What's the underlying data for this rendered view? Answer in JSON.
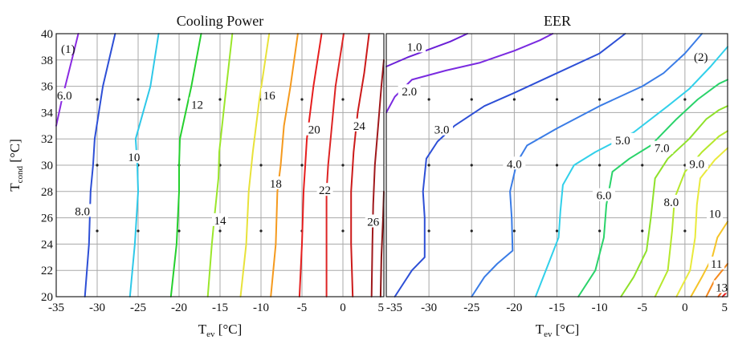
{
  "chart_data": [
    {
      "type": "contour",
      "title": "Cooling Power",
      "panel_tag": "(1)",
      "xlabel": {
        "main": "T",
        "sub": "ev",
        "unit": " [°C]"
      },
      "ylabel": {
        "main": "T",
        "sub": "cond",
        "unit": " [°C]"
      },
      "xlim": [
        -35,
        5
      ],
      "ylim": [
        20,
        40
      ],
      "xticks": [
        "-35",
        "-30",
        "-25",
        "-20",
        "-15",
        "-10",
        "-5",
        "0",
        "5"
      ],
      "yticks": [
        "20",
        "22",
        "24",
        "26",
        "28",
        "30",
        "32",
        "34",
        "36",
        "38",
        "40"
      ],
      "grid": true,
      "sample_points": {
        "x": [
          -30,
          -25,
          -20,
          -15,
          -10,
          -5,
          0
        ],
        "y": [
          25,
          30,
          35
        ]
      },
      "contours": [
        {
          "level": 6,
          "label": "6.0",
          "color": "#8a2be2",
          "points": [
            [
              -35,
              33
            ],
            [
              -34.3,
              35
            ],
            [
              -33.5,
              37
            ],
            [
              -32.7,
              39
            ],
            [
              -32.3,
              40
            ]
          ],
          "label_at": [
            -34,
            35.3
          ]
        },
        {
          "level": 8,
          "label": "8.0",
          "color": "#2d4fd6",
          "points": [
            [
              -31.5,
              20
            ],
            [
              -31,
              24
            ],
            [
              -30.8,
              28
            ],
            [
              -30.5,
              30
            ],
            [
              -30.3,
              32
            ],
            [
              -29.3,
              36
            ],
            [
              -27.8,
              40
            ]
          ],
          "label_at": [
            -31.8,
            26.5
          ]
        },
        {
          "level": 10,
          "label": "10",
          "color": "#2ec8e8",
          "points": [
            [
              -26,
              20
            ],
            [
              -25.4,
              24
            ],
            [
              -25,
              28
            ],
            [
              -25.1,
              30
            ],
            [
              -25.3,
              32
            ],
            [
              -23.5,
              36
            ],
            [
              -22.5,
              40
            ]
          ],
          "label_at": [
            -25.5,
            30.6
          ]
        },
        {
          "level": 12,
          "label": "12",
          "color": "#25d02e",
          "points": [
            [
              -21,
              20
            ],
            [
              -20.3,
              24
            ],
            [
              -20,
              28
            ],
            [
              -20,
              30
            ],
            [
              -19.9,
              32
            ],
            [
              -18.5,
              36
            ],
            [
              -17.3,
              40
            ]
          ],
          "label_at": [
            -17.8,
            34.6
          ]
        },
        {
          "level": 14,
          "label": "14",
          "color": "#9be62b",
          "points": [
            [
              -16.5,
              20
            ],
            [
              -16,
              24
            ],
            [
              -15.7,
              26
            ],
            [
              -15.2,
              29
            ],
            [
              -15.1,
              31
            ],
            [
              -14.4,
              35
            ],
            [
              -13.5,
              40
            ]
          ],
          "label_at": [
            -15,
            25.8
          ]
        },
        {
          "level": 16,
          "label": "16",
          "color": "#e8e23a",
          "points": [
            [
              -12.5,
              20
            ],
            [
              -11.8,
              24
            ],
            [
              -11.5,
              28
            ],
            [
              -11,
              31
            ],
            [
              -10.2,
              35
            ],
            [
              -9,
              40
            ]
          ],
          "label_at": [
            -9,
            35.3
          ]
        },
        {
          "level": 18,
          "label": "18",
          "color": "#f59a1e",
          "points": [
            [
              -8.8,
              20
            ],
            [
              -8.2,
              24
            ],
            [
              -8,
              28
            ],
            [
              -7.6,
              30
            ],
            [
              -7.2,
              33
            ],
            [
              -6.4,
              36
            ],
            [
              -5.5,
              40
            ]
          ],
          "label_at": [
            -8.2,
            28.6
          ]
        },
        {
          "level": 20,
          "label": "20",
          "color": "#e61e1e",
          "points": [
            [
              -5.3,
              20
            ],
            [
              -5,
              24
            ],
            [
              -4.8,
              28
            ],
            [
              -4.6,
              30
            ],
            [
              -4.4,
              32
            ],
            [
              -3.6,
              36
            ],
            [
              -2.6,
              40
            ]
          ],
          "label_at": [
            -3.5,
            32.7
          ]
        },
        {
          "level": 22,
          "label": "22",
          "color": "#dd2424",
          "points": [
            [
              -2,
              20
            ],
            [
              -2,
              24
            ],
            [
              -2,
              28
            ],
            [
              -1.8,
              30
            ],
            [
              -1.5,
              32
            ],
            [
              -0.9,
              36
            ],
            [
              0.1,
              40
            ]
          ],
          "label_at": [
            -2.2,
            28.1
          ]
        },
        {
          "level": 24,
          "label": "24",
          "color": "#cc1a1a",
          "points": [
            [
              1.2,
              20
            ],
            [
              1,
              24
            ],
            [
              1,
              28
            ],
            [
              1.3,
              31
            ],
            [
              1.8,
              34
            ],
            [
              2.6,
              37
            ],
            [
              3.2,
              40
            ]
          ],
          "label_at": [
            2,
            33
          ]
        },
        {
          "level": 26,
          "label": "26",
          "color": "#a0191c",
          "points": [
            [
              3.5,
              20
            ],
            [
              3.6,
              24
            ],
            [
              3.7,
              27
            ],
            [
              3.9,
              30
            ],
            [
              4.3,
              33
            ],
            [
              4.7,
              36
            ],
            [
              5,
              38
            ]
          ],
          "label_at": [
            3.7,
            25.7
          ]
        },
        {
          "level": 28,
          "label": "",
          "color": "#8b1414",
          "points": [
            [
              4.6,
              20
            ],
            [
              4.7,
              23
            ],
            [
              4.9,
              26
            ],
            [
              5,
              28
            ]
          ],
          "label_at": null
        }
      ]
    },
    {
      "type": "contour",
      "title": "EER",
      "panel_tag": "(2)",
      "xlabel": {
        "main": "T",
        "sub": "ev",
        "unit": " [°C]"
      },
      "ylabel": null,
      "xlim": [
        -35,
        5
      ],
      "ylim": [
        20,
        40
      ],
      "xticks": [
        "-35",
        "-30",
        "-25",
        "-20",
        "-15",
        "-10",
        "-5",
        "0",
        "5"
      ],
      "yticks": [],
      "grid": true,
      "sample_points": {
        "x": [
          -30,
          -25,
          -20,
          -15,
          -10,
          -5,
          0
        ],
        "y": [
          25,
          30,
          35
        ]
      },
      "contours": [
        {
          "level": 1.0,
          "label": "1.0",
          "color": "#6a1fd6",
          "points": [
            [
              -35,
              37.5
            ],
            [
              -32.5,
              38.2
            ],
            [
              -30,
              38.8
            ],
            [
              -27.5,
              39.4
            ],
            [
              -25.5,
              40
            ]
          ],
          "label_at": [
            -31.7,
            39
          ]
        },
        {
          "level": 2.0,
          "label": "2.0",
          "color": "#7a2be0",
          "points": [
            [
              -35,
              34
            ],
            [
              -34,
              35.2
            ],
            [
              -32,
              36.5
            ],
            [
              -28,
              37.2
            ],
            [
              -24,
              37.8
            ],
            [
              -20,
              38.7
            ],
            [
              -17,
              39.5
            ],
            [
              -15.5,
              40
            ]
          ],
          "label_at": [
            -32.3,
            35.6
          ]
        },
        {
          "level": 3.0,
          "label": "3.0",
          "color": "#2d4fd6",
          "points": [
            [
              -34,
              20
            ],
            [
              -32,
              22
            ],
            [
              -30.5,
              23
            ],
            [
              -30.5,
              26
            ],
            [
              -30.7,
              28
            ],
            [
              -30.3,
              30.5
            ],
            [
              -29,
              31.8
            ],
            [
              -27,
              33
            ],
            [
              -23.5,
              34.5
            ],
            [
              -20,
              35.5
            ],
            [
              -15,
              37
            ],
            [
              -10,
              38.5
            ],
            [
              -7,
              40
            ]
          ],
          "label_at": [
            -28.5,
            32.7
          ]
        },
        {
          "level": 4.0,
          "label": "4.0",
          "color": "#3a7ce6",
          "points": [
            [
              -25,
              20
            ],
            [
              -23.5,
              21.5
            ],
            [
              -22,
              22.5
            ],
            [
              -20.2,
              23.5
            ],
            [
              -20.3,
              26
            ],
            [
              -20.5,
              28
            ],
            [
              -19.7,
              30.2
            ],
            [
              -18.5,
              31.5
            ],
            [
              -15,
              32.8
            ],
            [
              -10,
              34.5
            ],
            [
              -5,
              36
            ],
            [
              -2.5,
              37
            ],
            [
              0,
              38.5
            ],
            [
              2,
              40
            ]
          ],
          "label_at": [
            -20,
            30.1
          ]
        },
        {
          "level": 5.0,
          "label": "5.0",
          "color": "#31d0ea",
          "points": [
            [
              -17.5,
              20
            ],
            [
              -16,
              22.5
            ],
            [
              -14.8,
              24.5
            ],
            [
              -14.6,
              26.5
            ],
            [
              -14.3,
              28.5
            ],
            [
              -13,
              30
            ],
            [
              -10.5,
              31
            ],
            [
              -6,
              32.5
            ],
            [
              -2,
              34.5
            ],
            [
              0.5,
              35.8
            ],
            [
              3,
              37.5
            ],
            [
              5,
              39
            ]
          ],
          "label_at": [
            -7.3,
            31.9
          ]
        },
        {
          "level": 6.0,
          "label": "6.0",
          "color": "#2ad36a",
          "points": [
            [
              -12.5,
              20
            ],
            [
              -10.5,
              22
            ],
            [
              -9.5,
              24.5
            ],
            [
              -9.2,
              27
            ],
            [
              -8.5,
              29.5
            ],
            [
              -6.5,
              30.5
            ],
            [
              -4,
              31.5
            ],
            [
              -1,
              33.5
            ],
            [
              1.5,
              35
            ],
            [
              4,
              36.2
            ],
            [
              5,
              36.5
            ]
          ],
          "label_at": [
            -9.5,
            27.7
          ]
        },
        {
          "level": 7.0,
          "label": "7.0",
          "color": "#8fe12a",
          "points": [
            [
              -7.5,
              20
            ],
            [
              -6,
              21.5
            ],
            [
              -4.5,
              23.5
            ],
            [
              -4,
              26
            ],
            [
              -3.5,
              29
            ],
            [
              -2,
              30.5
            ],
            [
              0.5,
              32
            ],
            [
              2.5,
              33.5
            ],
            [
              4,
              34.2
            ],
            [
              5,
              34.5
            ]
          ],
          "label_at": [
            -2.7,
            31.3
          ]
        },
        {
          "level": 8.0,
          "label": "8.0",
          "color": "#b6e82c",
          "points": [
            [
              -3.5,
              20
            ],
            [
              -2,
              22
            ],
            [
              -1.5,
              25
            ],
            [
              -1.2,
              27.5
            ],
            [
              0,
              29.5
            ],
            [
              2,
              31
            ],
            [
              4,
              32.2
            ],
            [
              5,
              32.6
            ]
          ],
          "label_at": [
            -1.6,
            27.2
          ]
        },
        {
          "level": 9.0,
          "label": "9.0",
          "color": "#e9ea3c",
          "points": [
            [
              -1,
              20
            ],
            [
              0.6,
              22
            ],
            [
              1.2,
              24.5
            ],
            [
              1.4,
              27
            ],
            [
              1.8,
              29
            ],
            [
              3.5,
              30.4
            ],
            [
              5,
              31.3
            ]
          ],
          "label_at": [
            1.4,
            30.1
          ]
        },
        {
          "level": 10,
          "label": "10",
          "color": "#f5c428",
          "points": [
            [
              0.7,
              20
            ],
            [
              2,
              21.5
            ],
            [
              3.2,
              23
            ],
            [
              3.8,
              24.5
            ],
            [
              5,
              25.7
            ]
          ],
          "label_at": [
            3.5,
            26.3
          ]
        },
        {
          "level": 11,
          "label": "11",
          "color": "#f58a1e",
          "points": [
            [
              2.5,
              20
            ],
            [
              3.5,
              21.3
            ],
            [
              5,
              22.5
            ]
          ],
          "label_at": [
            3.7,
            22.5
          ]
        },
        {
          "level": 12,
          "label": "",
          "color": "#ee5a1a",
          "points": [
            [
              3.9,
              20
            ],
            [
              4.5,
              20.5
            ],
            [
              5,
              21.1
            ]
          ],
          "label_at": null
        },
        {
          "level": 13,
          "label": "13",
          "color": "#e61e1e",
          "points": [
            [
              4.4,
              20
            ],
            [
              5,
              20.4
            ]
          ],
          "label_at": [
            4.3,
            20.7
          ]
        }
      ]
    }
  ]
}
